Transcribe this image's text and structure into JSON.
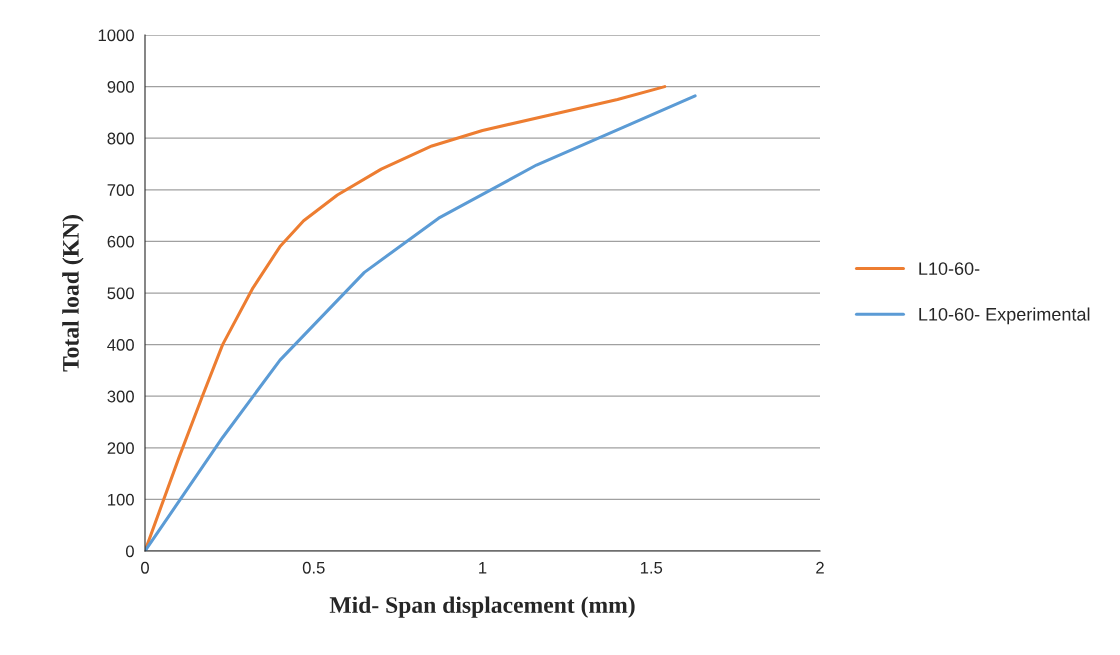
{
  "chart_data": {
    "type": "line",
    "xlabel": "Mid- Span displacement (mm)",
    "ylabel": "Total load (KN)",
    "xlim": [
      0,
      2
    ],
    "xticks": [
      0,
      0.5,
      1,
      1.5,
      2
    ],
    "ylim": [
      0,
      1000
    ],
    "yticks": [
      0,
      100,
      200,
      300,
      400,
      500,
      600,
      700,
      800,
      900,
      1000
    ],
    "grid": "y",
    "legend": "right",
    "marker": "none",
    "line_style": "solid",
    "series": [
      {
        "name": "L10-60-",
        "color": "#ed7d31",
        "x": [
          0,
          0.1,
          0.17,
          0.23,
          0.32,
          0.4,
          0.47,
          0.57,
          0.7,
          0.85,
          1.0,
          1.2,
          1.4,
          1.54
        ],
        "values": [
          0,
          180,
          300,
          400,
          510,
          590,
          640,
          690,
          740,
          785,
          815,
          845,
          875,
          900
        ]
      },
      {
        "name": "L10-60- Experimental",
        "color": "#5b9bd5",
        "x": [
          0,
          0.23,
          0.4,
          0.65,
          0.87,
          1.16,
          1.42,
          1.63
        ],
        "values": [
          0,
          220,
          370,
          540,
          645,
          748,
          822,
          882
        ]
      }
    ]
  }
}
